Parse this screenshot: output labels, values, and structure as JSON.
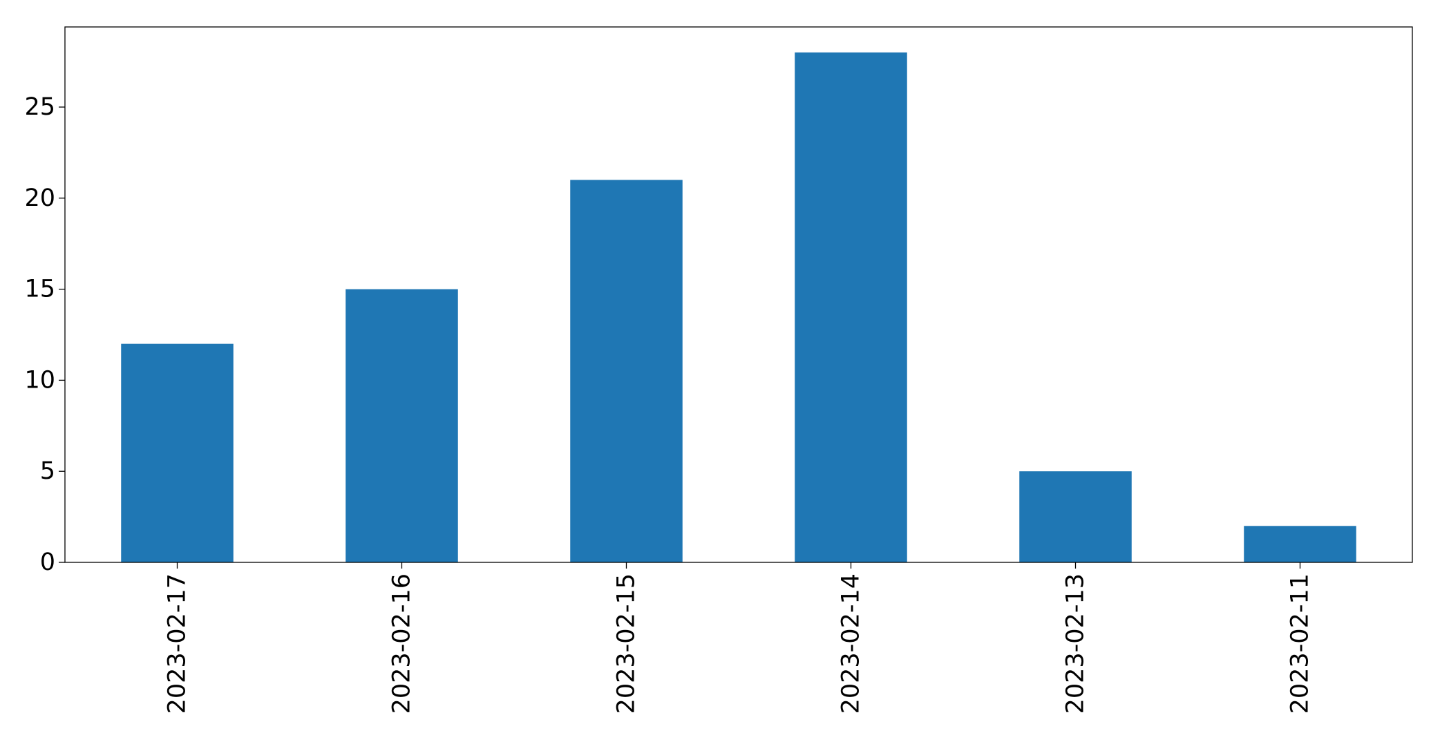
{
  "chart_data": {
    "type": "bar",
    "title": "",
    "xlabel": "",
    "ylabel": "",
    "categories": [
      "2023-02-17",
      "2023-02-16",
      "2023-02-15",
      "2023-02-14",
      "2023-02-13",
      "2023-02-11"
    ],
    "values": [
      12,
      15,
      21,
      28,
      5,
      2
    ],
    "ylim": [
      0,
      29.4
    ],
    "yticks": [
      0,
      5,
      10,
      15,
      20,
      25
    ],
    "bar_color": "#1f77b4",
    "grid": false,
    "legend": false
  }
}
